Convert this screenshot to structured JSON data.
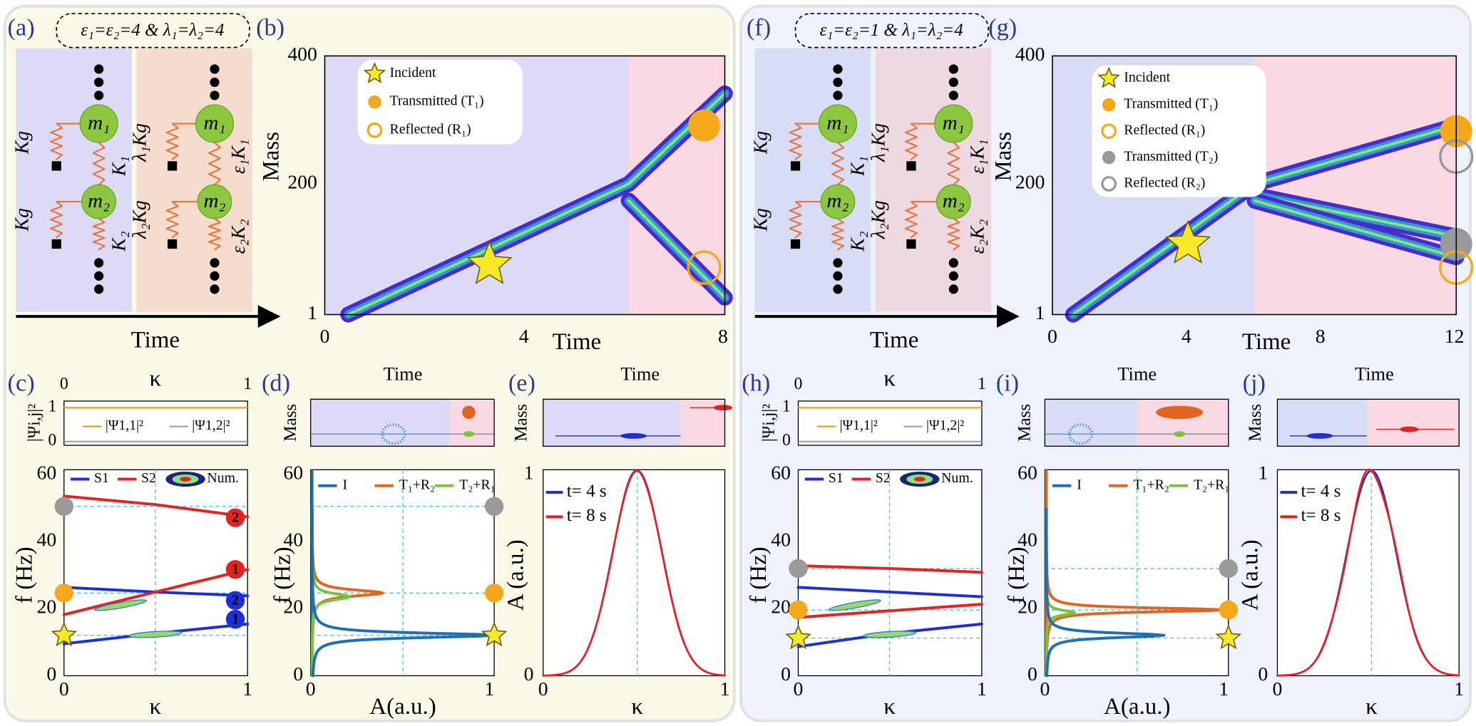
{
  "left": {
    "config_label": "(a)",
    "config": "ε₁=ε₂=4 & λ₁=λ₂=4",
    "diagram": {
      "masses": [
        "m₁",
        "m₂",
        "m₁",
        "m₂"
      ],
      "springs": [
        "Kg",
        "Kg",
        "K₁",
        "K₂",
        "λ₁Kg",
        "λ₂Kg",
        "ε₁K₁",
        "ε₂K₂"
      ],
      "axis": "Time"
    },
    "wave": {
      "label": "(b)",
      "y_label": "Mass",
      "x_label": "Time",
      "yticks": [
        400,
        200,
        1
      ],
      "xticks": [
        0,
        4,
        8
      ],
      "legend": [
        "Incident",
        "Transmitted (T₁)",
        "Reflected (R₁)"
      ]
    },
    "dispersion": {
      "label": "(c)",
      "top_x_label": "κ",
      "top_xticks": [
        0,
        1
      ],
      "top_y_label": "|Ψi,j|²",
      "top_yticks": [
        1,
        0
      ],
      "top_legend": [
        "|Ψ1,1|²",
        "|Ψ1,2|²"
      ],
      "legend": [
        "S1",
        "S2",
        "Num."
      ],
      "y_label": "f (Hz)",
      "yticks": [
        60,
        40,
        20,
        0
      ],
      "x_label": "κ",
      "xticks": [
        0,
        1
      ],
      "band_markers": [
        "2",
        "1",
        "2",
        "1"
      ]
    },
    "spectrum": {
      "label": "(d)",
      "top_x_label": "Time",
      "top_y_label": "Mass",
      "legend": [
        "I",
        "T₁+R₂",
        "T₂+R₁"
      ],
      "y_label": "f (Hz)",
      "yticks": [
        60,
        40,
        20,
        0
      ],
      "x_label": "A(a.u.)",
      "xticks": [
        0,
        1
      ]
    },
    "profile": {
      "label": "(e)",
      "top_x_label": "Time",
      "top_y_label": "Mass",
      "legend": [
        "t= 4 s",
        "t= 8 s"
      ],
      "y_label": "A (a.u.)",
      "yticks": [
        1,
        0
      ],
      "x_label": "κ",
      "xticks": [
        0,
        1
      ]
    }
  },
  "right": {
    "config_label": "(f)",
    "config": "ε₁=ε₂=1 & λ₁=λ₂=4",
    "diagram": {
      "masses": [
        "m₁",
        "m₂",
        "m₁",
        "m₂"
      ],
      "springs": [
        "Kg",
        "Kg",
        "K₁",
        "K₂",
        "λ₁Kg",
        "λ₂Kg",
        "ε₁K₁",
        "ε₂K₂"
      ],
      "axis": "Time"
    },
    "wave": {
      "label": "(g)",
      "y_label": "Mass",
      "x_label": "Time",
      "yticks": [
        400,
        200,
        1
      ],
      "xticks": [
        0,
        4,
        8,
        12
      ],
      "legend": [
        "Incident",
        "Transmitted (T₁)",
        "Reflected (R₁)",
        "Transmitted (T₂)",
        "Reflected (R₂)"
      ]
    },
    "dispersion": {
      "label": "(h)",
      "top_x_label": "κ",
      "top_xticks": [
        0,
        1
      ],
      "top_y_label": "|Ψi,j|²",
      "top_yticks": [
        1,
        0
      ],
      "top_legend": [
        "|Ψ1,1|²",
        "|Ψ1,2|²"
      ],
      "legend": [
        "S1",
        "S2",
        "Num."
      ],
      "y_label": "f (Hz)",
      "yticks": [
        60,
        40,
        20,
        0
      ],
      "x_label": "κ",
      "xticks": [
        0,
        1
      ]
    },
    "spectrum": {
      "label": "(i)",
      "top_x_label": "Time",
      "top_y_label": "Mass",
      "legend": [
        "I",
        "T₁+R₂",
        "T₂+R₁"
      ],
      "y_label": "f (Hz)",
      "yticks": [
        60,
        40,
        20,
        0
      ],
      "x_label": "A(a.u.)",
      "xticks": [
        0,
        1
      ]
    },
    "profile": {
      "label": "(j)",
      "top_x_label": "Time",
      "top_y_label": "Mass",
      "legend": [
        "t= 4 s",
        "t= 8 s"
      ],
      "y_label": "A (a.u.)",
      "yticks": [
        1,
        0
      ],
      "x_label": "κ",
      "xticks": [
        0,
        1
      ]
    }
  }
}
